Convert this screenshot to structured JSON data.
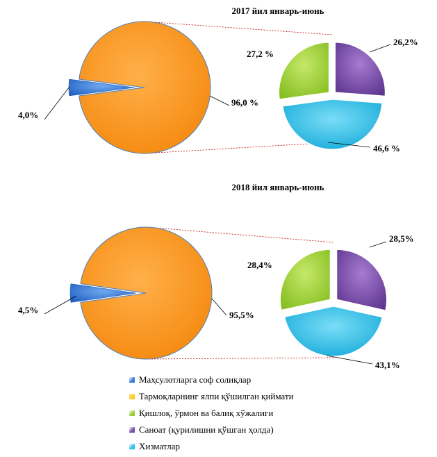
{
  "colors": {
    "products": "#3A78D8",
    "sectors": "#FF9922",
    "agriculture": "#9ACD32",
    "industry": "#7A4FA6",
    "services": "#2EC0E8",
    "leader": "#C00000"
  },
  "legend": [
    {
      "key": "products",
      "label": "Маҳсулотларга соф солиқлар",
      "icon": "gradient-square-icon"
    },
    {
      "key": "sectors",
      "label": "Тармоқларнинг ялпи қўшилган қиймати",
      "icon": "gradient-square-icon"
    },
    {
      "key": "agriculture",
      "label": "Қишлоқ, ўрмон ва балиқ хўжалиги",
      "icon": "gradient-square-icon"
    },
    {
      "key": "industry",
      "label": "Саноат (қурилишни қўшган ҳолда)",
      "icon": "gradient-square-icon"
    },
    {
      "key": "services",
      "label": "Хизматлар",
      "icon": "gradient-square-icon"
    }
  ],
  "chart_data": [
    {
      "type": "pie",
      "title": "2017  йил январь-июнь",
      "main": {
        "products": {
          "value": 4.0,
          "label": "4,0%"
        },
        "sectors": {
          "value": 96.0,
          "label": "96,0 %"
        }
      },
      "breakdown": [
        {
          "key": "industry",
          "value": 26.2,
          "label": "26,2%"
        },
        {
          "key": "services",
          "value": 46.6,
          "label": "46,6 %"
        },
        {
          "key": "agriculture",
          "value": 27.2,
          "label": "27,2 %"
        }
      ]
    },
    {
      "type": "pie",
      "title": "2018  йил январь-июнь",
      "main": {
        "products": {
          "value": 4.5,
          "label": "4,5%"
        },
        "sectors": {
          "value": 95.5,
          "label": "95,5%"
        }
      },
      "breakdown": [
        {
          "key": "industry",
          "value": 28.5,
          "label": "28,5%"
        },
        {
          "key": "services",
          "value": 43.1,
          "label": "43,1%"
        },
        {
          "key": "agriculture",
          "value": 28.4,
          "label": "28,4%"
        }
      ]
    }
  ]
}
